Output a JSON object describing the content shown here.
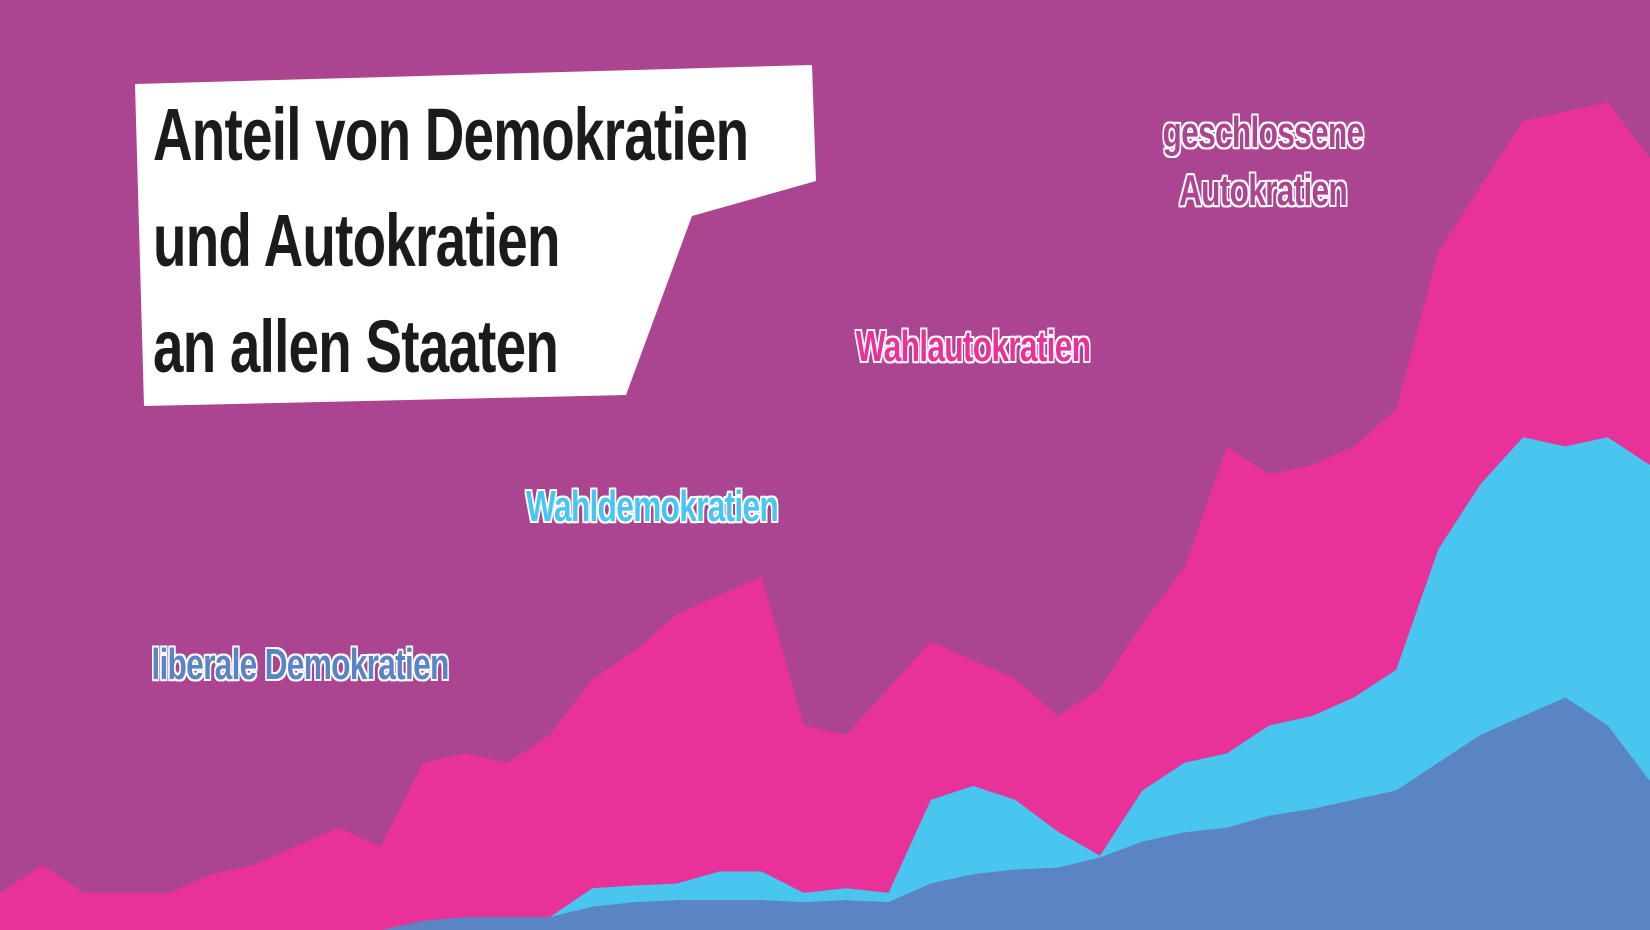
{
  "chart_data": {
    "type": "stacked-area",
    "title": "Anteil von Demokratien\nund Autokratien\nan allen Staaten",
    "ylim": [
      0,
      100
    ],
    "series": [
      {
        "name": "liberale Demokratien",
        "color": "#5b84c4",
        "values": [
          0,
          0,
          0,
          0,
          0,
          0,
          0,
          0,
          0,
          0,
          1,
          1.4,
          1.4,
          1.4,
          2.5,
          3,
          3.2,
          3.2,
          3.2,
          3,
          3.2,
          3,
          5,
          6,
          6.5,
          6.7,
          7.8,
          9.5,
          10.5,
          11,
          12.3,
          13,
          14,
          15,
          18,
          21,
          23,
          25,
          22,
          16
        ]
      },
      {
        "name": "Wahldemokratien",
        "color": "#48c6f0",
        "values": [
          0,
          0,
          0,
          0,
          0,
          0,
          0,
          0,
          0,
          0,
          0,
          0,
          0,
          0,
          2,
          1.8,
          1.8,
          3.1,
          3.1,
          1,
          1.3,
          1,
          9,
          9.5,
          7.5,
          3.9,
          0.2,
          5.5,
          7.5,
          8,
          9.7,
          10,
          11,
          13,
          23,
          27,
          30,
          27,
          31,
          34
        ]
      },
      {
        "name": "Wahlautokratien",
        "color": "#e8329a",
        "values": [
          4,
          7,
          4,
          4,
          4,
          6,
          7,
          9,
          11,
          9,
          17,
          17.6,
          16.6,
          19.6,
          22.5,
          25.2,
          29,
          29.7,
          31.7,
          18,
          16.5,
          22,
          17,
          13.5,
          13,
          12.4,
          18,
          18,
          21,
          33,
          27,
          27,
          27,
          28,
          32,
          32,
          34,
          36,
          36,
          33
        ]
      },
      {
        "name": "geschlossene\nAutokratien",
        "color": "#ab4591",
        "values": [
          96,
          93,
          96,
          96,
          96,
          94,
          93,
          91,
          89,
          91,
          82,
          81,
          82,
          79,
          73,
          70,
          66,
          64,
          62,
          78,
          79,
          74,
          69,
          71,
          73,
          77,
          74,
          67,
          61,
          48,
          51,
          50,
          48,
          44,
          27,
          20,
          13,
          12,
          11,
          17
        ]
      }
    ]
  }
}
